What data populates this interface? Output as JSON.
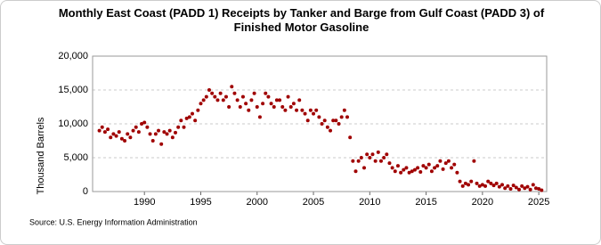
{
  "chart_data": {
    "type": "scatter",
    "title": "Monthly East Coast (PADD 1) Receipts by Tanker and Barge from Gulf Coast (PADD 3) of Finished Motor Gasoline",
    "y_label": "Thousand Barrels",
    "source": "Source: U.S. Energy Information Administration",
    "color": "#a00000",
    "grid": true,
    "xlim": [
      1985.4,
      2025.7
    ],
    "xticks": [
      1990,
      1995,
      2000,
      2005,
      2010,
      2015,
      2020,
      2025
    ],
    "ylim": [
      0,
      20000
    ],
    "yticks": [
      0,
      {
        "value": 5000,
        "label": "5,000"
      },
      {
        "value": 10000,
        "label": "10,000"
      },
      {
        "value": 15000,
        "label": "15,000"
      },
      {
        "value": 20000,
        "label": "20,000"
      }
    ],
    "x": [
      1986,
      1986.25,
      1986.5,
      1986.75,
      1987,
      1987.25,
      1987.5,
      1987.75,
      1988,
      1988.25,
      1988.5,
      1988.75,
      1989,
      1989.25,
      1989.5,
      1989.75,
      1990,
      1990.25,
      1990.5,
      1990.75,
      1991,
      1991.25,
      1991.5,
      1991.75,
      1992,
      1992.25,
      1992.5,
      1992.75,
      1993,
      1993.25,
      1993.5,
      1993.75,
      1994,
      1994.25,
      1994.5,
      1994.75,
      1995,
      1995.25,
      1995.5,
      1995.75,
      1996,
      1996.25,
      1996.5,
      1996.75,
      1997,
      1997.25,
      1997.5,
      1997.75,
      1998,
      1998.25,
      1998.5,
      1998.75,
      1999,
      1999.25,
      1999.5,
      1999.75,
      2000,
      2000.25,
      2000.5,
      2000.75,
      2001,
      2001.25,
      2001.5,
      2001.75,
      2002,
      2002.25,
      2002.5,
      2002.75,
      2003,
      2003.25,
      2003.5,
      2003.75,
      2004,
      2004.25,
      2004.5,
      2004.75,
      2005,
      2005.25,
      2005.5,
      2005.75,
      2006,
      2006.25,
      2006.5,
      2006.75,
      2007,
      2007.25,
      2007.5,
      2007.75,
      2008,
      2008.25,
      2008.5,
      2008.75,
      2009,
      2009.25,
      2009.5,
      2009.75,
      2010,
      2010.25,
      2010.5,
      2010.75,
      2011,
      2011.25,
      2011.5,
      2011.75,
      2012,
      2012.25,
      2012.5,
      2012.75,
      2013,
      2013.25,
      2013.5,
      2013.75,
      2014,
      2014.25,
      2014.5,
      2014.75,
      2015,
      2015.25,
      2015.5,
      2015.75,
      2016,
      2016.25,
      2016.5,
      2016.75,
      2017,
      2017.25,
      2017.5,
      2017.75,
      2018,
      2018.25,
      2018.5,
      2018.75,
      2019,
      2019.25,
      2019.5,
      2019.75,
      2020,
      2020.25,
      2020.5,
      2020.75,
      2021,
      2021.25,
      2021.5,
      2021.75,
      2022,
      2022.25,
      2022.5,
      2022.75,
      2023,
      2023.25,
      2023.5,
      2023.75,
      2024,
      2024.25,
      2024.5,
      2024.75,
      2025,
      2025.25
    ],
    "values": [
      9000,
      9500,
      8800,
      9200,
      8000,
      8500,
      8200,
      8800,
      7800,
      7500,
      8500,
      8000,
      9000,
      9500,
      8800,
      10000,
      10200,
      9500,
      8500,
      7500,
      8500,
      9000,
      7000,
      8800,
      8500,
      9000,
      8000,
      8700,
      9500,
      10500,
      9500,
      10800,
      11000,
      11500,
      10500,
      12000,
      13000,
      13500,
      14000,
      15000,
      14500,
      14000,
      13500,
      14500,
      13500,
      14000,
      12500,
      15500,
      14500,
      13500,
      12500,
      14000,
      13000,
      12000,
      13500,
      14500,
      12500,
      11000,
      13000,
      14500,
      14000,
      13000,
      12500,
      13500,
      13500,
      12500,
      12000,
      14000,
      12500,
      13000,
      12000,
      13500,
      12000,
      11500,
      10500,
      12000,
      11500,
      12000,
      11000,
      10000,
      10500,
      9500,
      9000,
      10500,
      10500,
      10000,
      11000,
      12000,
      11000,
      8000,
      4500,
      3000,
      4500,
      5000,
      3500,
      5500,
      5000,
      5500,
      4500,
      5800,
      4500,
      5000,
      5500,
      4200,
      3500,
      3000,
      3800,
      2800,
      3200,
      3500,
      2800,
      3000,
      3200,
      3500,
      2900,
      3800,
      3500,
      4000,
      3000,
      3500,
      3800,
      4500,
      3300,
      4200,
      4500,
      3500,
      4000,
      2800,
      1500,
      800,
      1200,
      1000,
      1500,
      4500,
      1200,
      800,
      1000,
      800,
      1500,
      1200,
      900,
      1200,
      700,
      1000,
      500,
      800,
      400,
      900,
      600,
      300,
      800,
      500,
      700,
      300,
      1000,
      500,
      400,
      200
    ]
  }
}
